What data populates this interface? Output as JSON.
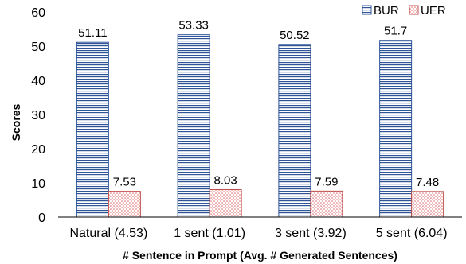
{
  "chart_data": {
    "type": "bar",
    "categories": [
      "Natural (4.53)",
      "1 sent (1.01)",
      "3 sent (3.92)",
      "5 sent (6.04)"
    ],
    "series": [
      {
        "name": "BUR",
        "values": [
          51.11,
          53.33,
          50.52,
          51.7
        ],
        "labels": [
          "51.11",
          "53.33",
          "50.52",
          "51.7"
        ],
        "color": "#2F5597",
        "pattern": "horizontal-lines"
      },
      {
        "name": "UER",
        "values": [
          7.53,
          8.03,
          7.59,
          7.48
        ],
        "labels": [
          "7.53",
          "8.03",
          "7.59",
          "7.48"
        ],
        "color": "#E06666",
        "pattern": "dots"
      }
    ],
    "xlabel": "# Sentence in Prompt (Avg. # Generated Sentences)",
    "ylabel": "Scores",
    "ylim": [
      0,
      60
    ],
    "yticks": [
      0,
      10,
      20,
      30,
      40,
      50,
      60
    ],
    "legend": "top-right",
    "grid": false
  }
}
